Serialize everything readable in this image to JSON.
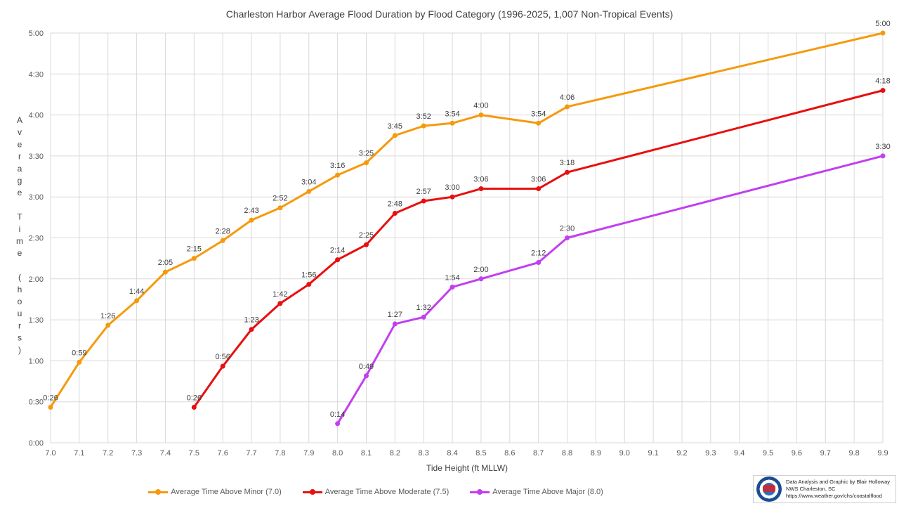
{
  "chart_data": {
    "type": "line",
    "title": "Charleston Harbor Average Flood Duration by Flood Category (1996-2025, 1,007 Non-Tropical Events)",
    "xlabel": "Tide Height (ft MLLW)",
    "ylabel": "Average Time (hours)",
    "x_ticks": [
      "7.0",
      "7.1",
      "7.2",
      "7.3",
      "7.4",
      "7.5",
      "7.6",
      "7.7",
      "7.8",
      "7.9",
      "8.0",
      "8.1",
      "8.2",
      "8.3",
      "8.4",
      "8.5",
      "8.6",
      "8.7",
      "8.8",
      "8.9",
      "9.0",
      "9.1",
      "9.2",
      "9.3",
      "9.4",
      "9.5",
      "9.6",
      "9.7",
      "9.8",
      "9.9"
    ],
    "xlim": [
      7.0,
      9.9
    ],
    "y_ticks": [
      "0:00",
      "0:30",
      "1:00",
      "1:30",
      "2:00",
      "2:30",
      "3:00",
      "3:30",
      "4:00",
      "4:30",
      "5:00"
    ],
    "ylim_minutes": [
      0,
      300
    ],
    "grid": true,
    "legend_position": "bottom",
    "series": [
      {
        "name": "Average Time Above Minor (7.0)",
        "color": "#f59a0c",
        "x": [
          7.0,
          7.1,
          7.2,
          7.3,
          7.4,
          7.5,
          7.6,
          7.7,
          7.8,
          7.9,
          8.0,
          8.1,
          8.2,
          8.3,
          8.4,
          8.5,
          8.7,
          8.8,
          9.9
        ],
        "values_minutes": [
          26,
          59,
          86,
          104,
          125,
          135,
          148,
          163,
          172,
          184,
          196,
          205,
          225,
          232,
          234,
          240,
          234,
          246,
          300
        ],
        "labels": [
          "0:26",
          "0:59",
          "1:26",
          "1:44",
          "2:05",
          "2:15",
          "2:28",
          "2:43",
          "2:52",
          "3:04",
          "3:16",
          "3:25",
          "3:45",
          "3:52",
          "3:54",
          "4:00",
          "3:54",
          "4:06",
          "5:00"
        ]
      },
      {
        "name": "Average Time Above Moderate (7.5)",
        "color": "#e80f0f",
        "x": [
          7.5,
          7.6,
          7.7,
          7.8,
          7.9,
          8.0,
          8.1,
          8.2,
          8.3,
          8.4,
          8.5,
          8.7,
          8.8,
          9.9
        ],
        "values_minutes": [
          26,
          56,
          83,
          102,
          116,
          134,
          145,
          168,
          177,
          180,
          186,
          186,
          198,
          258
        ],
        "labels": [
          "0:26",
          "0:56",
          "1:23",
          "1:42",
          "1:56",
          "2:14",
          "2:25",
          "2:48",
          "2:57",
          "3:00",
          "3:06",
          "3:06",
          "3:18",
          "4:18"
        ]
      },
      {
        "name": "Average Time Above Major (8.0)",
        "color": "#c23ff0",
        "x": [
          8.0,
          8.1,
          8.2,
          8.3,
          8.4,
          8.5,
          8.7,
          8.8,
          9.9
        ],
        "values_minutes": [
          14,
          49,
          87,
          92,
          114,
          120,
          132,
          150,
          210
        ],
        "labels": [
          "0:14",
          "0:49",
          "1:27",
          "1:32",
          "1:54",
          "2:00",
          "2:12",
          "2:30",
          "3:30"
        ]
      }
    ]
  },
  "credit": {
    "line1": "Data Analysis and Graphic by Blair Holloway",
    "line2": "NWS Charleston, SC",
    "line3": "https://www.weather.gov/chs/coastalflood"
  }
}
